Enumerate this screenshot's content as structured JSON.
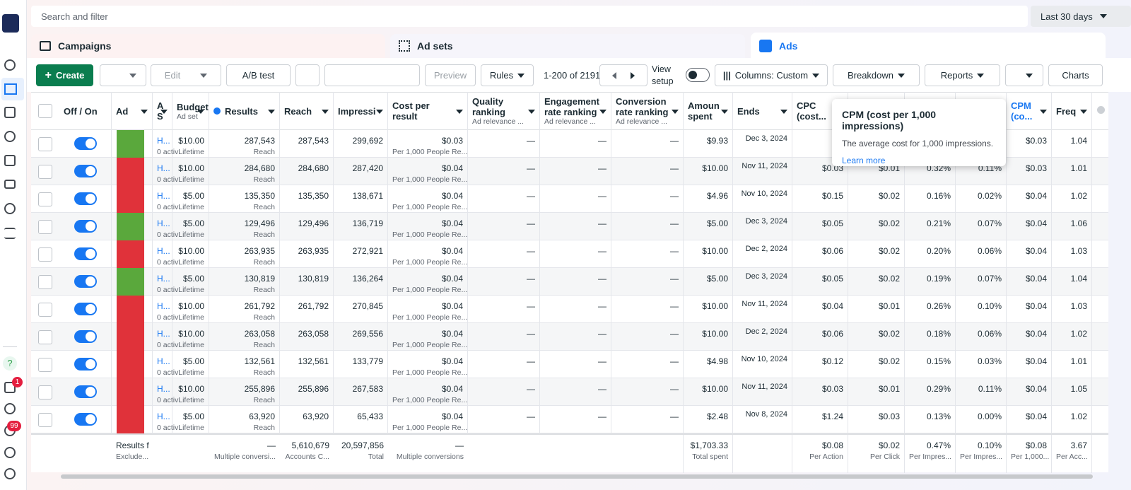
{
  "search": {
    "placeholder": "Search and filter",
    "date_range": "Last 30 days"
  },
  "tabs": [
    "Campaigns",
    "Ad sets",
    "Ads"
  ],
  "toolbar": {
    "create": "Create",
    "edit": "Edit",
    "ab_test": "A/B test",
    "preview": "Preview",
    "rules": "Rules",
    "pagination": "1-200 of 2191",
    "view_setup": "View setup",
    "columns": "Columns: Custom",
    "breakdown": "Breakdown",
    "reports": "Reports",
    "charts": "Charts"
  },
  "sidebar": {
    "help": "?",
    "notifications_badge": "1",
    "alerts_badge": "99"
  },
  "table": {
    "headers": [
      {
        "label": "Off / On"
      },
      {
        "label": "Ad"
      },
      {
        "label": "A S"
      },
      {
        "label": "Budget",
        "sub": "Ad set"
      },
      {
        "label": "Results"
      },
      {
        "label": "Reach"
      },
      {
        "label": "Impressi"
      },
      {
        "label": "Cost per result"
      },
      {
        "label": "Quality ranking",
        "sub": "Ad relevance ..."
      },
      {
        "label": "Engagement rate ranking",
        "sub": "Ad relevance ..."
      },
      {
        "label": "Conversion rate ranking",
        "sub": "Ad relevance ..."
      },
      {
        "label": "Amoun spent"
      },
      {
        "label": "Ends"
      },
      {
        "label": "CPC (cost..."
      },
      null,
      null,
      null,
      {
        "label": "CPM (co..."
      },
      {
        "label": "Freq"
      }
    ],
    "rows": [
      [
        null,
        null,
        {
          "text": "H...",
          "sub": "0 activ"
        },
        {
          "text": "$10.00",
          "sub": "Lifetime"
        },
        {
          "text": "287,543",
          "sub": "Reach"
        },
        "287,543",
        "299,692",
        {
          "text": "$0.03",
          "sub": "Per 1,000 People Re..."
        },
        "—",
        "—",
        "—",
        "$9.93",
        "Dec 3, 2024",
        null,
        null,
        null,
        null,
        "$0.03",
        "1.04"
      ],
      [
        null,
        null,
        {
          "text": "H...",
          "sub": "0 activ"
        },
        {
          "text": "$10.00",
          "sub": "Lifetime"
        },
        {
          "text": "284,680",
          "sub": "Reach"
        },
        "284,680",
        "287,420",
        {
          "text": "$0.04",
          "sub": "Per 1,000 People Re..."
        },
        "—",
        "—",
        "—",
        "$10.00",
        "Nov 11, 2024",
        "$0.03",
        "$0.01",
        "0.32%",
        "0.11%",
        "$0.03",
        "1.01"
      ],
      [
        null,
        null,
        {
          "text": "H...",
          "sub": "0 activ"
        },
        {
          "text": "$5.00",
          "sub": "Lifetime"
        },
        {
          "text": "135,350",
          "sub": "Reach"
        },
        "135,350",
        "138,671",
        {
          "text": "$0.04",
          "sub": "Per 1,000 People Re..."
        },
        "—",
        "—",
        "—",
        "$4.96",
        "Nov 10, 2024",
        "$0.15",
        "$0.02",
        "0.16%",
        "0.02%",
        "$0.04",
        "1.02"
      ],
      [
        null,
        null,
        {
          "text": "H...",
          "sub": "0 activ"
        },
        {
          "text": "$5.00",
          "sub": "Lifetime"
        },
        {
          "text": "129,496",
          "sub": "Reach"
        },
        "129,496",
        "136,719",
        {
          "text": "$0.04",
          "sub": "Per 1,000 People Re..."
        },
        "—",
        "—",
        "—",
        "$5.00",
        "Dec 3, 2024",
        "$0.05",
        "$0.02",
        "0.21%",
        "0.07%",
        "$0.04",
        "1.06"
      ],
      [
        null,
        null,
        {
          "text": "H...",
          "sub": "0 activ"
        },
        {
          "text": "$10.00",
          "sub": "Lifetime"
        },
        {
          "text": "263,935",
          "sub": "Reach"
        },
        "263,935",
        "272,921",
        {
          "text": "$0.04",
          "sub": "Per 1,000 People Re..."
        },
        "—",
        "—",
        "—",
        "$10.00",
        "Dec 2, 2024",
        "$0.06",
        "$0.02",
        "0.20%",
        "0.06%",
        "$0.04",
        "1.03"
      ],
      [
        null,
        null,
        {
          "text": "H...",
          "sub": "0 activ"
        },
        {
          "text": "$5.00",
          "sub": "Lifetime"
        },
        {
          "text": "130,819",
          "sub": "Reach"
        },
        "130,819",
        "136,264",
        {
          "text": "$0.04",
          "sub": "Per 1,000 People Re..."
        },
        "—",
        "—",
        "—",
        "$5.00",
        "Dec 3, 2024",
        "$0.05",
        "$0.02",
        "0.19%",
        "0.07%",
        "$0.04",
        "1.04"
      ],
      [
        null,
        null,
        {
          "text": "H...",
          "sub": "0 activ"
        },
        {
          "text": "$10.00",
          "sub": "Lifetime"
        },
        {
          "text": "261,792",
          "sub": "Reach"
        },
        "261,792",
        "270,845",
        {
          "text": "$0.04",
          "sub": "Per 1,000 People Re..."
        },
        "—",
        "—",
        "—",
        "$10.00",
        "Nov 11, 2024",
        "$0.04",
        "$0.01",
        "0.26%",
        "0.10%",
        "$0.04",
        "1.03"
      ],
      [
        null,
        null,
        {
          "text": "H...",
          "sub": "0 activ"
        },
        {
          "text": "$10.00",
          "sub": "Lifetime"
        },
        {
          "text": "263,058",
          "sub": "Reach"
        },
        "263,058",
        "269,556",
        {
          "text": "$0.04",
          "sub": "Per 1,000 People Re..."
        },
        "—",
        "—",
        "—",
        "$10.00",
        "Dec 2, 2024",
        "$0.06",
        "$0.02",
        "0.18%",
        "0.06%",
        "$0.04",
        "1.02"
      ],
      [
        null,
        null,
        {
          "text": "H...",
          "sub": "0 activ"
        },
        {
          "text": "$5.00",
          "sub": "Lifetime"
        },
        {
          "text": "132,561",
          "sub": "Reach"
        },
        "132,561",
        "133,779",
        {
          "text": "$0.04",
          "sub": "Per 1,000 People Re..."
        },
        "—",
        "—",
        "—",
        "$4.98",
        "Nov 10, 2024",
        "$0.12",
        "$0.02",
        "0.15%",
        "0.03%",
        "$0.04",
        "1.01"
      ],
      [
        null,
        null,
        {
          "text": "H...",
          "sub": "0 activ"
        },
        {
          "text": "$10.00",
          "sub": "Lifetime"
        },
        {
          "text": "255,896",
          "sub": "Reach"
        },
        "255,896",
        "267,583",
        {
          "text": "$0.04",
          "sub": "Per 1,000 People Re..."
        },
        "—",
        "—",
        "—",
        "$10.00",
        "Nov 11, 2024",
        "$0.03",
        "$0.01",
        "0.29%",
        "0.11%",
        "$0.04",
        "1.05"
      ],
      [
        null,
        null,
        {
          "text": "H...",
          "sub": "0 activ"
        },
        {
          "text": "$5.00",
          "sub": "Lifetime"
        },
        {
          "text": "63,920",
          "sub": "Reach"
        },
        "63,920",
        "65,433",
        {
          "text": "$0.04",
          "sub": "Per 1,000 People Re..."
        },
        "—",
        "—",
        "—",
        "$2.48",
        "Nov 8, 2024",
        "$1.24",
        "$0.03",
        "0.13%",
        "0.00%",
        "$0.04",
        "1.02"
      ]
    ],
    "totals": [
      null,
      {
        "text": "Results f",
        "sub": "Exclude..."
      },
      null,
      null,
      {
        "text": "—",
        "sub": "Multiple conversi..."
      },
      {
        "text": "5,610,679",
        "sub": "Accounts C..."
      },
      {
        "text": "20,597,856",
        "sub": "Total"
      },
      {
        "text": "—",
        "sub": "Multiple conversions"
      },
      null,
      null,
      null,
      {
        "text": "$1,703.33",
        "sub": "Total spent"
      },
      null,
      {
        "text": "$0.08",
        "sub": "Per Action"
      },
      {
        "text": "$0.02",
        "sub": "Per Click"
      },
      {
        "text": "0.47%",
        "sub": "Per Impres..."
      },
      {
        "text": "0.10%",
        "sub": "Per Impres..."
      },
      {
        "text": "$0.08",
        "sub": "Per 1,000..."
      },
      {
        "text": "3.67",
        "sub": "Per Acc..."
      }
    ]
  },
  "tooltip": {
    "title": "CPM (cost per 1,000 impressions)",
    "body": "The average cost for 1,000 impressions.",
    "link": "Learn more"
  }
}
